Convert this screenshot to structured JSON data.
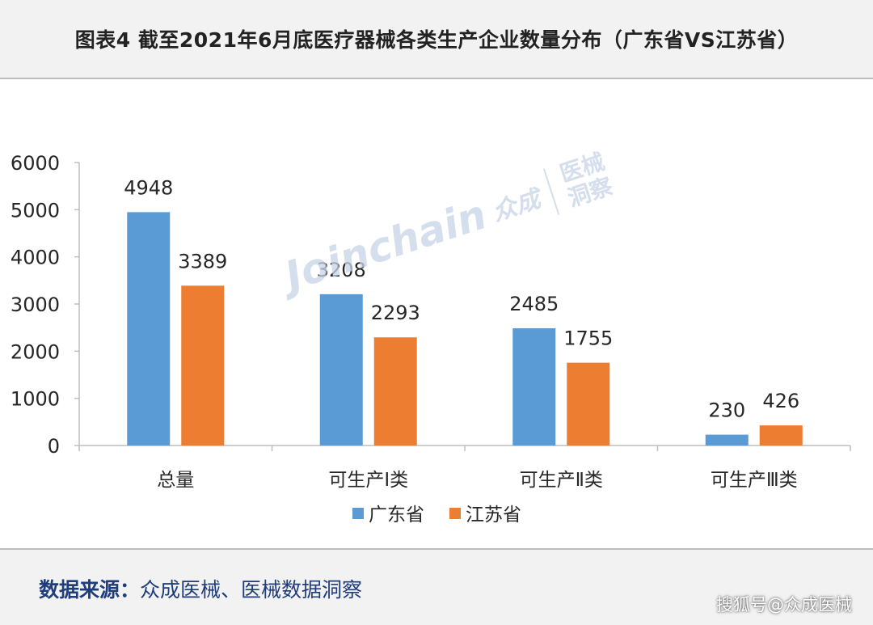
{
  "title": "图表4 截至2021年6月底医疗器械各类生产企业数量分布（广东省VS江苏省）",
  "source": {
    "label": "数据来源：",
    "text": "众成医械、医械数据洞察"
  },
  "credit": "搜狐号@众成医械",
  "watermark": {
    "text_en": "Joinchain",
    "text_cn": "众成",
    "side_top": "医械",
    "side_bottom": "洞察"
  },
  "colors": {
    "guangdong": "#5b9bd5",
    "jiangsu": "#ed7d31",
    "axis": "#bfbfbf",
    "text": "#262626"
  },
  "chart_data": {
    "type": "bar",
    "categories": [
      "总量",
      "可生产Ⅰ类",
      "可生产Ⅱ类",
      "可生产Ⅲ类"
    ],
    "series": [
      {
        "name": "广东省",
        "values": [
          4948,
          3208,
          2485,
          230
        ]
      },
      {
        "name": "江苏省",
        "values": [
          3389,
          2293,
          1755,
          426
        ]
      }
    ],
    "y_ticks": [
      0,
      1000,
      2000,
      3000,
      4000,
      5000,
      6000
    ],
    "ylim": [
      0,
      6000
    ],
    "grid": false,
    "legend_position": "bottom-center",
    "data_labels": true
  }
}
